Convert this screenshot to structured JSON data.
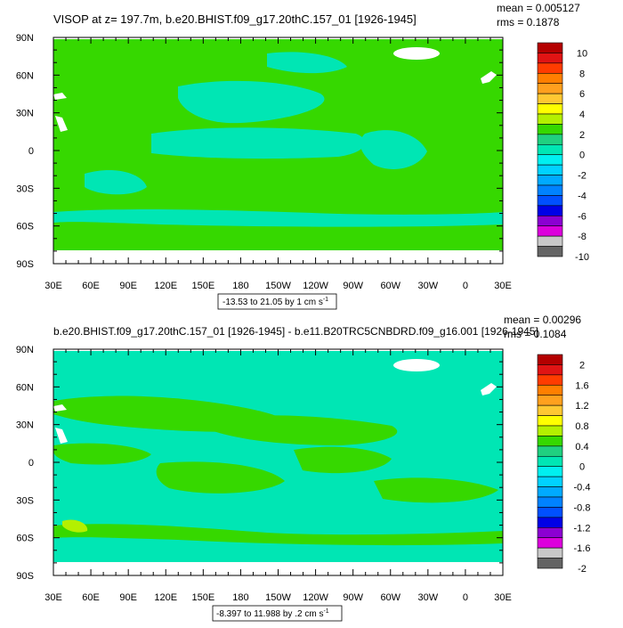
{
  "panels": [
    {
      "title": "VISOP at z= 197.7m, b.e20.BHIST.f09_g17.20thC.157_01 [1926-1945]",
      "stats": {
        "mean": "mean = 0.005127",
        "rms": "rms = 0.1878"
      },
      "range_label": "-13.53 to 21.05 by 1 cm s",
      "range_sup": "-1",
      "colorbar_labels": [
        "10",
        "8",
        "6",
        "4",
        "2",
        "0",
        "-2",
        "-4",
        "-6",
        "-8",
        "-10"
      ],
      "colorbar_colors": [
        "#b40000",
        "#e01414",
        "#ff3c00",
        "#ff7f00",
        "#ffa01e",
        "#ffc832",
        "#ffff00",
        "#b4f000",
        "#36d800",
        "#20d080",
        "#00e6b4",
        "#00f0f0",
        "#00d2ff",
        "#00aaff",
        "#0082ff",
        "#0050ff",
        "#0000e6",
        "#8c00d2",
        "#dc00dc",
        "#c8c8c8",
        "#646464"
      ]
    },
    {
      "title": "b.e20.BHIST.f09_g17.20thC.157_01 [1926-1945] - b.e11.B20TRC5CNBDRD.f09_g16.001 [1926-1945]",
      "stats": {
        "mean": "mean = 0.00296",
        "rms": "rms = 0.1084"
      },
      "range_label": "-8.397 to 11.988 by .2 cm s",
      "range_sup": "-1",
      "colorbar_labels": [
        "2",
        "1.6",
        "1.2",
        "0.8",
        "0.4",
        "0",
        "-0.4",
        "-0.8",
        "-1.2",
        "-1.6",
        "-2"
      ],
      "colorbar_colors": [
        "#b40000",
        "#e01414",
        "#ff3c00",
        "#ff7f00",
        "#ffa01e",
        "#ffc832",
        "#ffff00",
        "#b4f000",
        "#36d800",
        "#20d080",
        "#00e6b4",
        "#00f0f0",
        "#00d2ff",
        "#00aaff",
        "#0082ff",
        "#0050ff",
        "#0000e6",
        "#8c00d2",
        "#dc00dc",
        "#c8c8c8",
        "#646464"
      ]
    }
  ],
  "chart_data": [
    {
      "type": "heatmap",
      "title": "VISOP at z= 197.7m, b.e20.BHIST.f09_g17.20thC.157_01 [1926-1945]",
      "x_tick_labels": [
        "30E",
        "60E",
        "90E",
        "120E",
        "150E",
        "180",
        "150W",
        "120W",
        "90W",
        "60W",
        "30W",
        "0",
        "30E"
      ],
      "x_range_lon": [
        30,
        390
      ],
      "y_tick_labels": [
        "90N",
        "60N",
        "30N",
        "0",
        "30S",
        "60S",
        "90S"
      ],
      "y_range_lat": [
        -90,
        90
      ],
      "colorbar_levels": [
        10,
        8,
        6,
        4,
        2,
        0,
        -2,
        -4,
        -6,
        -8,
        -10
      ],
      "dominant_fill": "#36d800",
      "mean": 0.005127,
      "rms": 0.1878,
      "data_min": -13.53,
      "data_max": 21.05,
      "contour_interval": 1,
      "units": "cm s-1"
    },
    {
      "type": "heatmap",
      "title": "b.e20.BHIST.f09_g17.20thC.157_01 [1926-1945] - b.e11.B20TRC5CNBDRD.f09_g16.001 [1926-1945]",
      "x_tick_labels": [
        "30E",
        "60E",
        "90E",
        "120E",
        "150E",
        "180",
        "150W",
        "120W",
        "90W",
        "60W",
        "30W",
        "0",
        "30E"
      ],
      "x_range_lon": [
        30,
        390
      ],
      "y_tick_labels": [
        "90N",
        "60N",
        "30N",
        "0",
        "30S",
        "60S",
        "90S"
      ],
      "y_range_lat": [
        -90,
        90
      ],
      "colorbar_levels": [
        2,
        1.6,
        1.2,
        0.8,
        0.4,
        0,
        -0.4,
        -0.8,
        -1.2,
        -1.6,
        -2
      ],
      "dominant_fill": "#00e6b4",
      "mean": 0.00296,
      "rms": 0.1084,
      "data_min": -8.397,
      "data_max": 11.988,
      "contour_interval": 0.2,
      "units": "cm s-1"
    }
  ]
}
